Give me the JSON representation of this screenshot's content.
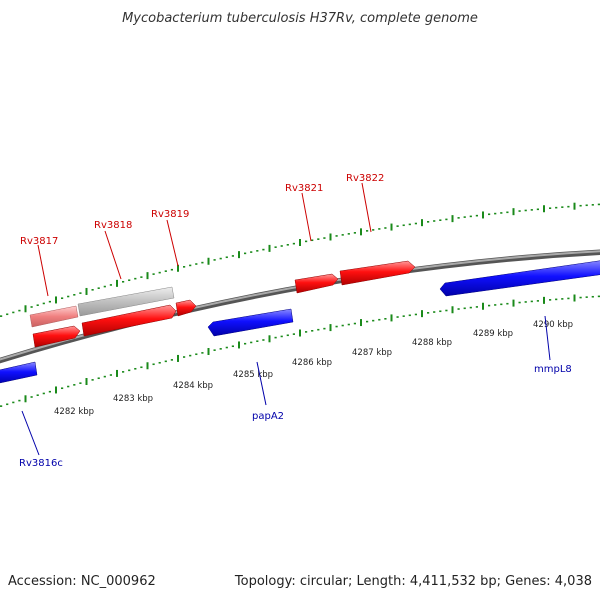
{
  "title": "Mycobacterium tuberculosis H37Rv, complete genome",
  "footer": {
    "accession": "Accession: NC_000962",
    "topology": "Topology: circular; Length: 4,411,532 bp; Genes: 4,038"
  },
  "colors": {
    "forward_gene": "#ff0000",
    "reverse_gene": "#0000ff",
    "pseudo_forward": "#f08080",
    "pseudo_gray": "#c0c0c0",
    "backbone": "#888888",
    "ruler_ticks": "#1a8a1a",
    "forward_label": "#cc0000",
    "reverse_label": "#0000aa"
  },
  "scale_labels": [
    "4282 kbp",
    "4283 kbp",
    "4284 kbp",
    "4285 kbp",
    "4286 kbp",
    "4287 kbp",
    "4288 kbp",
    "4289 kbp",
    "4290 kbp"
  ],
  "genes": {
    "forward": [
      "Rv3817",
      "Rv3818",
      "Rv3819",
      "Rv3821",
      "Rv3822"
    ],
    "reverse": [
      "Rv3816c",
      "papA2",
      "mmpL8"
    ]
  }
}
